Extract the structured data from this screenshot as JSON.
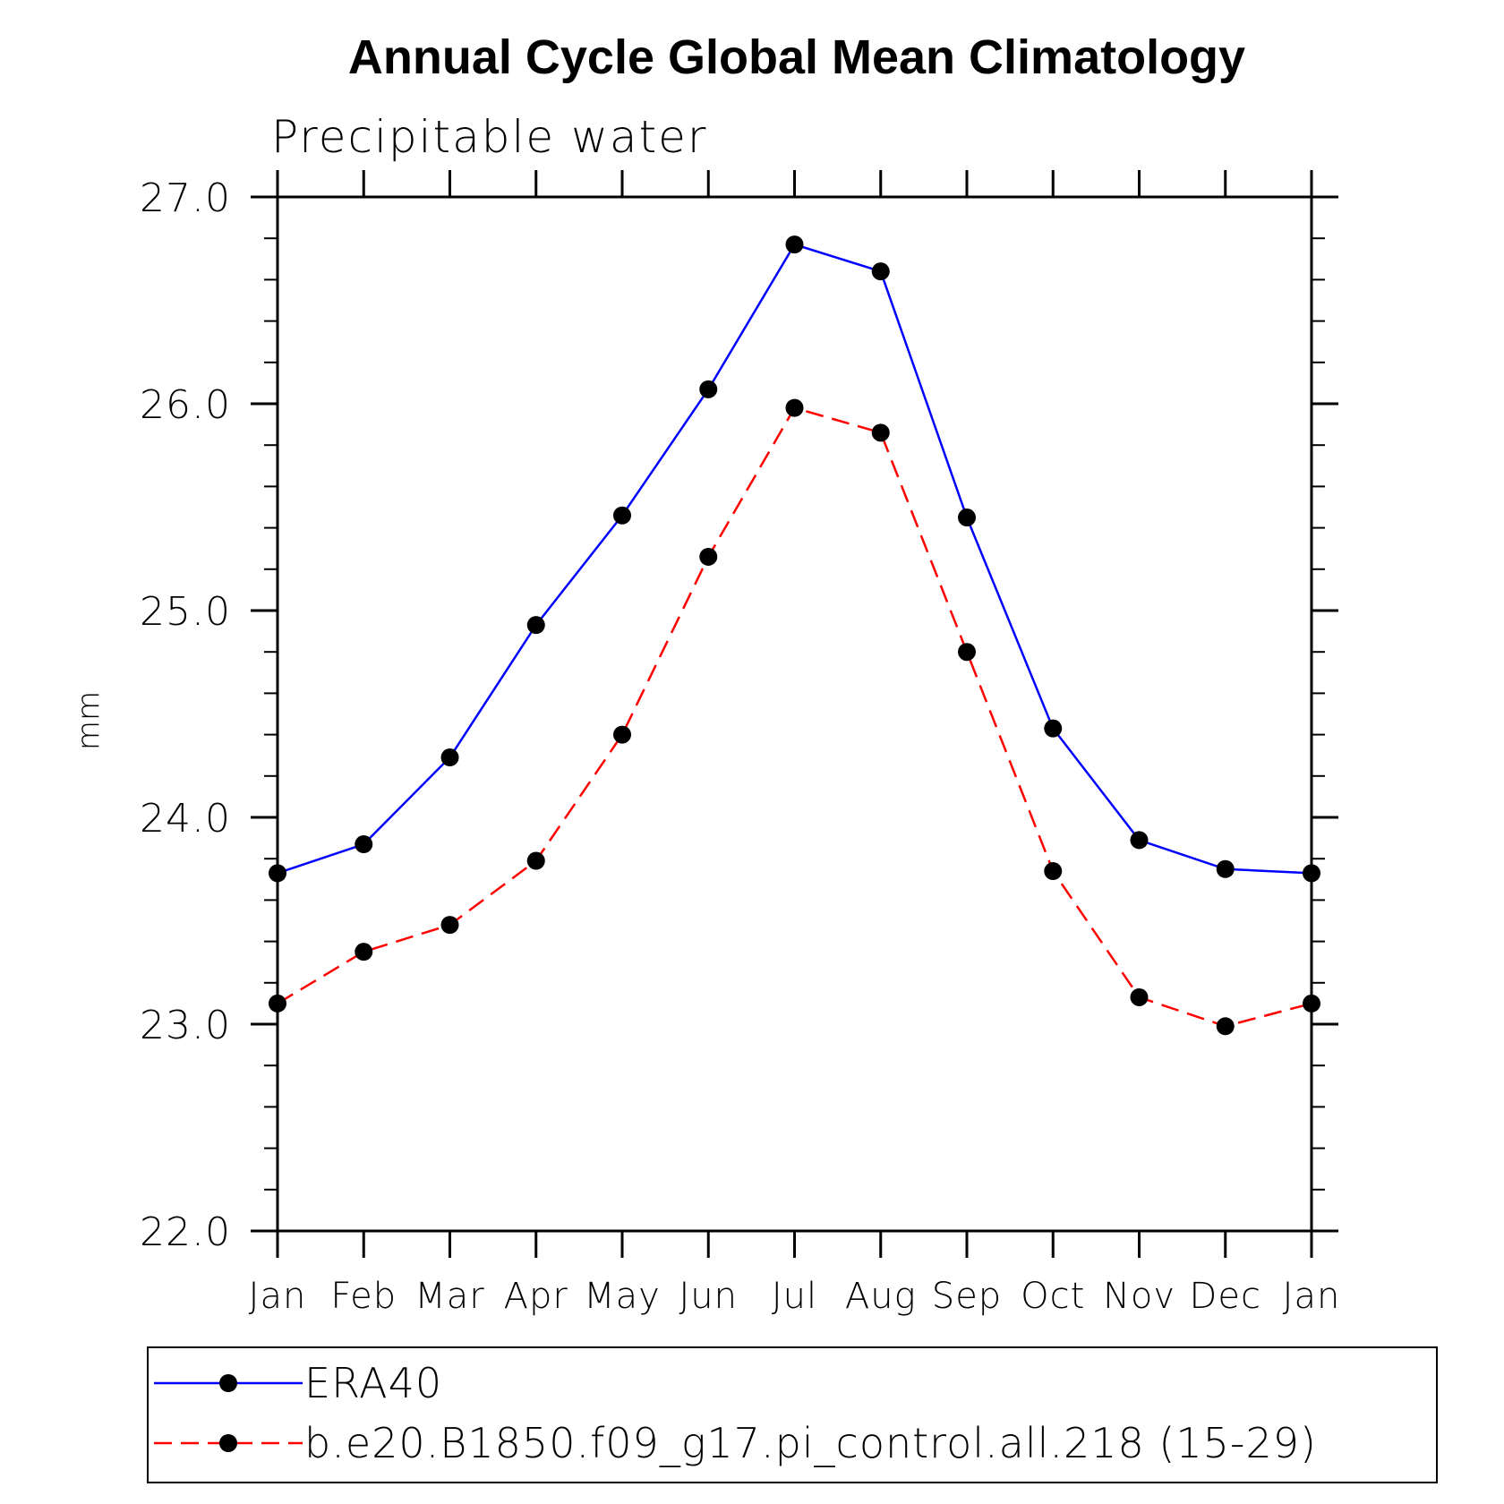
{
  "chart_data": {
    "type": "line",
    "title": "Annual Cycle Global Mean Climatology",
    "subtitle": "Precipitable water",
    "xlabel": "",
    "ylabel": "mm",
    "categories": [
      "Jan",
      "Feb",
      "Mar",
      "Apr",
      "May",
      "Jun",
      "Jul",
      "Aug",
      "Sep",
      "Oct",
      "Nov",
      "Dec",
      "Jan"
    ],
    "ylim": [
      22.0,
      27.0
    ],
    "yticks": [
      "22.0",
      "23.0",
      "24.0",
      "25.0",
      "26.0",
      "27.0"
    ],
    "y_minor_step": 0.2,
    "grid": false,
    "legend_position": "bottom",
    "series": [
      {
        "name": "ERA40",
        "color": "#0000ff",
        "dash": "solid",
        "marker": "filled-circle",
        "values": [
          23.73,
          23.87,
          24.29,
          24.93,
          25.46,
          26.07,
          26.77,
          26.64,
          25.45,
          24.43,
          23.89,
          23.75,
          23.73
        ]
      },
      {
        "name": "b.e20.B1850.f09_g17.pi_control.all.218 (15-29)",
        "color": "#ff0000",
        "dash": "dashed",
        "marker": "filled-circle",
        "values": [
          23.1,
          23.35,
          23.48,
          23.79,
          24.4,
          25.26,
          25.98,
          25.86,
          24.8,
          23.74,
          23.13,
          22.99,
          23.1
        ]
      }
    ]
  }
}
